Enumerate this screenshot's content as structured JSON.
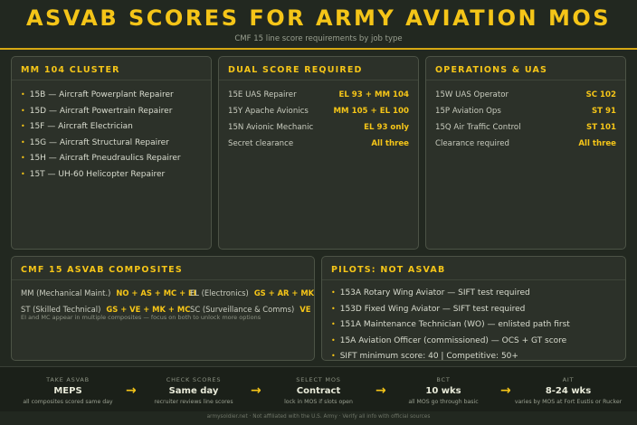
{
  "header": {
    "title": "ASVAB SCORES FOR ARMY AVIATION MOS",
    "subtitle": "CMF 15 line score requirements by job type"
  },
  "mm104": {
    "title": "MM 104 CLUSTER",
    "items": [
      "15B — Aircraft Powerplant Repairer",
      "15D — Aircraft Powertrain Repairer",
      "15F — Aircraft Electrician",
      "15G — Aircraft Structural Repairer",
      "15H — Aircraft Pneudraulics Repairer",
      "15T — UH-60 Helicopter Repairer"
    ]
  },
  "dual": {
    "title": "DUAL SCORE REQUIRED",
    "rows": [
      {
        "k": "15E UAS Repairer",
        "v": "EL 93 + MM 104"
      },
      {
        "k": "15Y Apache Avionics",
        "v": "MM 105 + EL 100"
      },
      {
        "k": "15N Avionic Mechanic",
        "v": "EL 93 only"
      },
      {
        "k": "Secret clearance",
        "v": "All three"
      }
    ]
  },
  "ops": {
    "title": "OPERATIONS & UAS",
    "rows": [
      {
        "k": "15W UAS Operator",
        "v": "SC 102"
      },
      {
        "k": "15P Aviation Ops",
        "v": "ST 91"
      },
      {
        "k": "15Q Air Traffic Control",
        "v": "ST 101"
      },
      {
        "k": "Clearance required",
        "v": "All three"
      }
    ]
  },
  "composites": {
    "title": "CMF 15 ASVAB COMPOSITES",
    "items": [
      {
        "k": "MM (Mechanical Maint.)",
        "v": "NO + AS + MC + EI"
      },
      {
        "k": "EL (Electronics)",
        "v": "GS + AR + MK + EI"
      },
      {
        "k": "ST (Skilled Technical)",
        "v": "GS + VE + MK + MC"
      },
      {
        "k": "SC (Surveillance & Comms)",
        "v": "VE + AR + AS + MC"
      }
    ],
    "note": "EI and MC appear in multiple composites — focus on both to unlock more options"
  },
  "pilots": {
    "title": "PILOTS: NOT ASVAB",
    "items": [
      "153A Rotary Wing Aviator — SIFT test required",
      "153D Fixed Wing Aviator — SIFT test required",
      "151A Maintenance Technician (WO) — enlisted path first",
      "15A Aviation Officer (commissioned) — OCS + GT score",
      "SIFT minimum score: 40 | Competitive: 50+"
    ]
  },
  "steps": [
    {
      "label": "TAKE ASVAB",
      "value": "MEPS",
      "desc": "all composites scored same day"
    },
    {
      "label": "CHECK SCORES",
      "value": "Same day",
      "desc": "recruiter reviews line scores"
    },
    {
      "label": "SELECT MOS",
      "value": "Contract",
      "desc": "lock in MOS if slots open"
    },
    {
      "label": "BCT",
      "value": "10 wks",
      "desc": "all MOS go through basic"
    },
    {
      "label": "AIT",
      "value": "8-24 wks",
      "desc": "varies by MOS at Fort Eustis or Rucker"
    }
  ],
  "arrow": "→",
  "bullet": "•",
  "credit": "armysoldier.net · Not affiliated with the U.S. Army · Verify all info with official sources",
  "colors": {
    "accent": "#f5c518",
    "background": "#222820",
    "card": "#2c3129"
  }
}
